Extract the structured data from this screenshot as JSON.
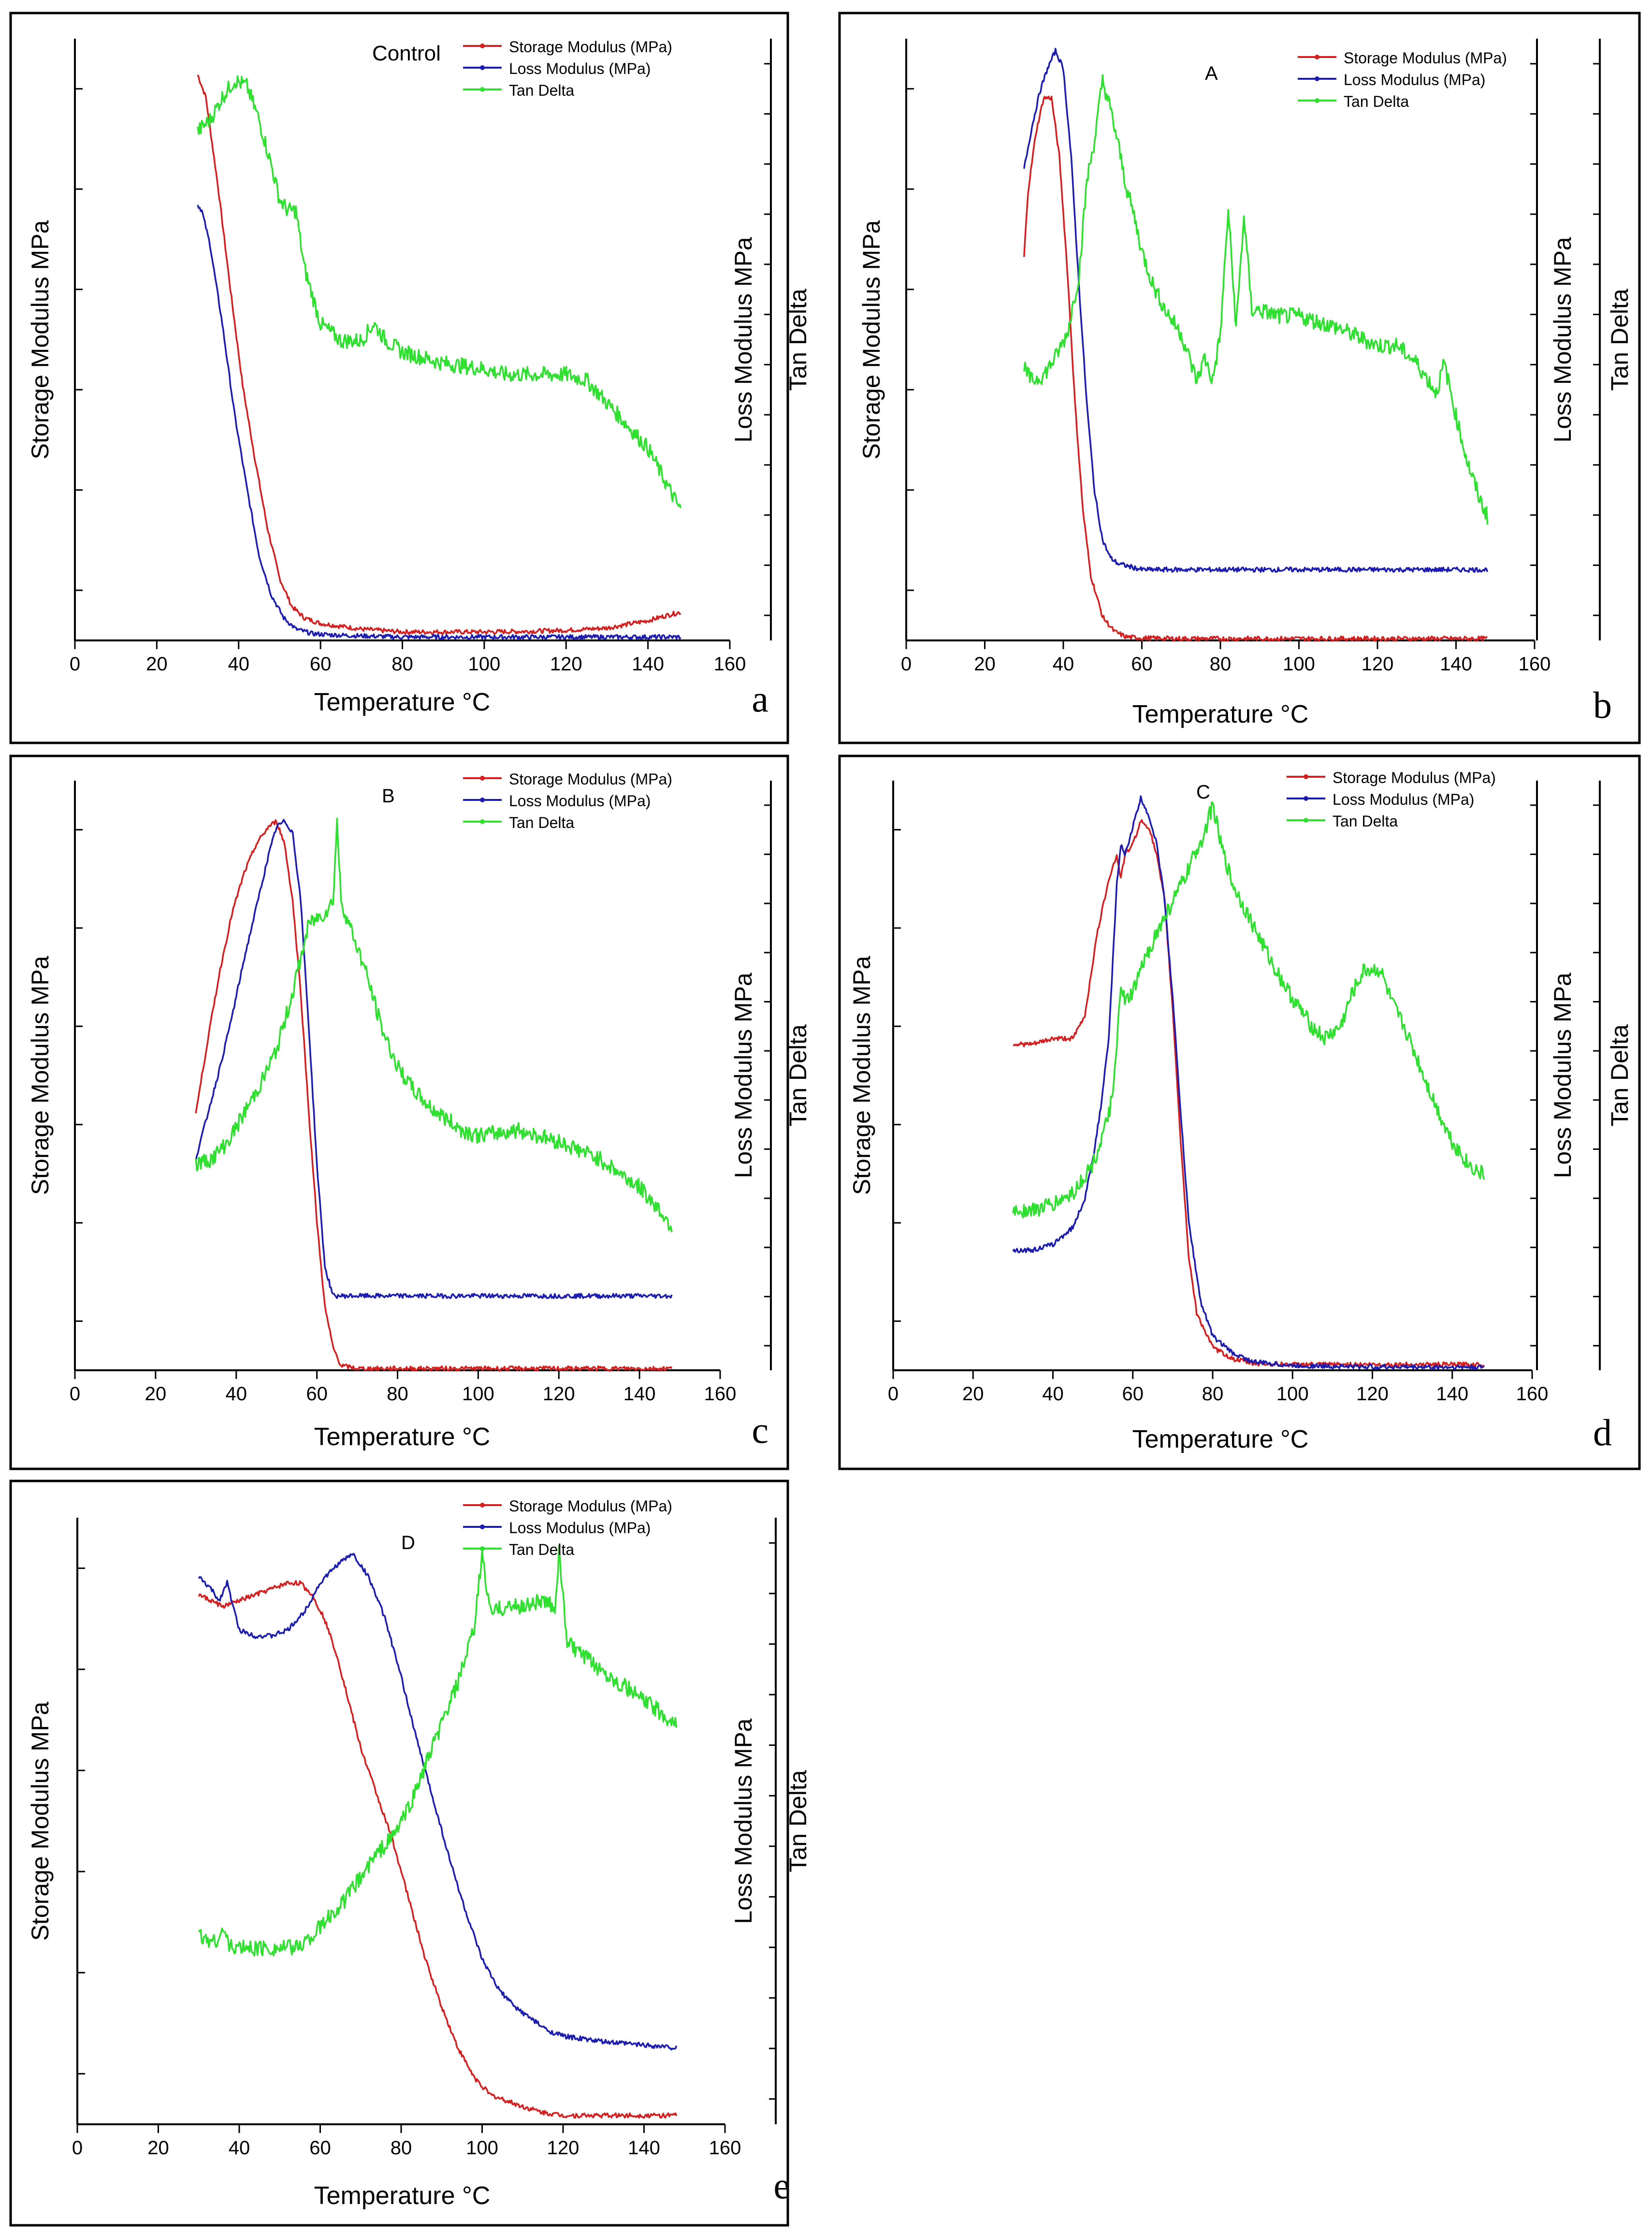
{
  "figure": {
    "x_axis_label": "Temperature",
    "x_axis_unit": "°C",
    "y_left_label": "Storage Modulus MPa",
    "y_right_label": "Loss Modulus MPa",
    "y_right2_label": "Tan Delta",
    "legend_labels": [
      "Storage Modulus (MPa)",
      "Loss Modulus (MPa)",
      "Tan Delta"
    ],
    "series_colors": {
      "storage": "#d42020",
      "loss": "#1c1cb0",
      "tan": "#30e030"
    },
    "x_ticks": [
      "0",
      "20",
      "40",
      "60",
      "80",
      "100",
      "120",
      "140",
      "160"
    ]
  },
  "chart_data": [
    {
      "panel": "a",
      "type": "line",
      "title": "Control",
      "xlim": [
        0,
        160
      ],
      "ylim": [
        0,
        1
      ],
      "series": [
        {
          "name": "Storage Modulus (MPa)",
          "x": [
            30,
            32,
            35,
            38,
            41,
            44,
            47,
            50,
            53,
            56,
            60,
            65,
            70,
            80,
            90,
            100,
            110,
            120,
            130,
            140,
            145,
            148
          ],
          "y": [
            1.0,
            0.96,
            0.8,
            0.62,
            0.45,
            0.32,
            0.2,
            0.11,
            0.06,
            0.04,
            0.03,
            0.025,
            0.02,
            0.015,
            0.015,
            0.015,
            0.016,
            0.018,
            0.022,
            0.035,
            0.045,
            0.05
          ]
        },
        {
          "name": "Loss Modulus (MPa)",
          "x": [
            30,
            31,
            33,
            36,
            39,
            42,
            45,
            48,
            51,
            54,
            58,
            62,
            70,
            80,
            100,
            120,
            140,
            148
          ],
          "y": [
            0.77,
            0.76,
            0.7,
            0.56,
            0.4,
            0.27,
            0.15,
            0.08,
            0.04,
            0.02,
            0.012,
            0.01,
            0.008,
            0.006,
            0.006,
            0.006,
            0.006,
            0.006
          ]
        },
        {
          "name": "Tan Delta",
          "x": [
            30,
            33,
            36,
            39,
            42,
            45,
            48,
            50,
            52,
            54,
            56,
            60,
            65,
            70,
            73,
            76,
            80,
            85,
            90,
            100,
            105,
            110,
            120,
            125,
            130,
            135,
            140,
            145,
            148
          ],
          "y": [
            0.9,
            0.92,
            0.96,
            0.99,
            0.98,
            0.92,
            0.84,
            0.78,
            0.76,
            0.76,
            0.66,
            0.56,
            0.53,
            0.53,
            0.56,
            0.53,
            0.51,
            0.5,
            0.49,
            0.48,
            0.47,
            0.47,
            0.47,
            0.46,
            0.42,
            0.38,
            0.34,
            0.27,
            0.23
          ]
        }
      ]
    },
    {
      "panel": "b",
      "type": "line",
      "title": "A",
      "xlim": [
        0,
        160
      ],
      "ylim": [
        0,
        1
      ],
      "series": [
        {
          "name": "Storage Modulus (MPa)",
          "x": [
            30,
            31,
            33,
            35,
            37,
            39,
            41,
            43,
            45,
            47,
            50,
            53,
            56,
            60,
            70,
            80,
            100,
            120,
            148
          ],
          "y": [
            0.65,
            0.76,
            0.86,
            0.92,
            0.92,
            0.82,
            0.63,
            0.4,
            0.22,
            0.11,
            0.04,
            0.015,
            0.006,
            0.004,
            0.003,
            0.003,
            0.003,
            0.003,
            0.003
          ]
        },
        {
          "name": "Loss Modulus (MPa)",
          "x": [
            30,
            32,
            34,
            36,
            38,
            40,
            42,
            44,
            46,
            48,
            50,
            52,
            54,
            57,
            60,
            65,
            70,
            80,
            100,
            120,
            148
          ],
          "y": [
            0.8,
            0.87,
            0.93,
            0.97,
            1.0,
            0.97,
            0.82,
            0.6,
            0.4,
            0.25,
            0.17,
            0.14,
            0.13,
            0.125,
            0.12,
            0.12,
            0.12,
            0.12,
            0.12,
            0.12,
            0.12
          ]
        },
        {
          "name": "Tan Delta",
          "x": [
            30,
            32,
            35,
            38,
            41,
            44,
            46,
            48,
            50,
            52,
            54,
            56,
            58,
            60,
            63,
            66,
            70,
            74,
            76,
            78,
            80,
            82,
            84,
            86,
            88,
            90,
            95,
            100,
            110,
            120,
            125,
            130,
            135,
            137,
            140,
            143,
            146,
            148
          ],
          "y": [
            0.46,
            0.44,
            0.45,
            0.48,
            0.52,
            0.62,
            0.78,
            0.85,
            0.95,
            0.9,
            0.84,
            0.77,
            0.72,
            0.66,
            0.6,
            0.56,
            0.52,
            0.44,
            0.48,
            0.44,
            0.52,
            0.73,
            0.53,
            0.72,
            0.56,
            0.56,
            0.55,
            0.55,
            0.53,
            0.5,
            0.5,
            0.47,
            0.42,
            0.47,
            0.38,
            0.3,
            0.24,
            0.21
          ]
        }
      ]
    },
    {
      "panel": "c",
      "type": "line",
      "title": "B",
      "xlim": [
        0,
        160
      ],
      "ylim": [
        0,
        1
      ],
      "series": [
        {
          "name": "Storage Modulus (MPa)",
          "x": [
            30,
            33,
            36,
            39,
            42,
            45,
            48,
            50,
            52,
            54,
            56,
            58,
            60,
            62,
            64,
            66,
            70,
            80,
            100,
            120,
            148
          ],
          "y": [
            0.45,
            0.58,
            0.7,
            0.8,
            0.87,
            0.92,
            0.95,
            0.96,
            0.92,
            0.82,
            0.66,
            0.45,
            0.26,
            0.11,
            0.04,
            0.008,
            0.003,
            0.003,
            0.003,
            0.003,
            0.003
          ]
        },
        {
          "name": "Loss Modulus (MPa)",
          "x": [
            30,
            33,
            36,
            39,
            42,
            45,
            48,
            50,
            52,
            54,
            56,
            58,
            60,
            62,
            64,
            66,
            70,
            80,
            100,
            120,
            148
          ],
          "y": [
            0.37,
            0.45,
            0.53,
            0.62,
            0.72,
            0.81,
            0.9,
            0.95,
            0.96,
            0.94,
            0.82,
            0.6,
            0.36,
            0.18,
            0.13,
            0.13,
            0.13,
            0.13,
            0.13,
            0.13,
            0.13
          ]
        },
        {
          "name": "Tan Delta",
          "x": [
            30,
            34,
            38,
            42,
            46,
            50,
            54,
            58,
            62,
            64,
            65,
            66,
            68,
            72,
            76,
            80,
            84,
            88,
            92,
            96,
            100,
            110,
            120,
            130,
            140,
            145,
            148
          ],
          "y": [
            0.36,
            0.37,
            0.4,
            0.45,
            0.5,
            0.56,
            0.66,
            0.78,
            0.8,
            0.82,
            0.96,
            0.82,
            0.78,
            0.7,
            0.6,
            0.53,
            0.49,
            0.46,
            0.44,
            0.42,
            0.41,
            0.42,
            0.4,
            0.37,
            0.32,
            0.28,
            0.25
          ]
        }
      ]
    },
    {
      "panel": "d",
      "type": "line",
      "title": "C",
      "xlim": [
        0,
        160
      ],
      "ylim": [
        0,
        1
      ],
      "series": [
        {
          "name": "Storage Modulus (MPa)",
          "x": [
            30,
            35,
            40,
            45,
            48,
            51,
            54,
            56,
            57,
            58,
            60,
            62,
            64,
            66,
            68,
            70,
            72,
            74,
            76,
            80,
            85,
            90,
            100,
            120,
            148
          ],
          "y": [
            0.57,
            0.57,
            0.58,
            0.58,
            0.62,
            0.76,
            0.86,
            0.9,
            0.86,
            0.9,
            0.92,
            0.96,
            0.95,
            0.9,
            0.82,
            0.63,
            0.4,
            0.2,
            0.1,
            0.04,
            0.02,
            0.012,
            0.01,
            0.01,
            0.01
          ]
        },
        {
          "name": "Loss Modulus (MPa)",
          "x": [
            30,
            35,
            40,
            45,
            48,
            50,
            52,
            54,
            56,
            57,
            58,
            60,
            62,
            64,
            66,
            68,
            70,
            72,
            74,
            77,
            80,
            85,
            90,
            100,
            120,
            148
          ],
          "y": [
            0.21,
            0.21,
            0.22,
            0.25,
            0.3,
            0.37,
            0.46,
            0.58,
            0.85,
            0.92,
            0.9,
            0.95,
            1.0,
            0.97,
            0.92,
            0.82,
            0.65,
            0.45,
            0.26,
            0.12,
            0.06,
            0.03,
            0.015,
            0.008,
            0.006,
            0.005
          ]
        },
        {
          "name": "Tan Delta",
          "x": [
            30,
            35,
            40,
            45,
            50,
            53,
            55,
            56,
            57,
            58,
            60,
            62,
            65,
            70,
            73,
            76,
            78,
            80,
            82,
            85,
            90,
            95,
            100,
            105,
            108,
            112,
            115,
            118,
            122,
            125,
            128,
            132,
            136,
            140,
            144,
            148
          ],
          "y": [
            0.28,
            0.28,
            0.29,
            0.31,
            0.36,
            0.42,
            0.48,
            0.56,
            0.68,
            0.64,
            0.66,
            0.7,
            0.75,
            0.82,
            0.86,
            0.91,
            0.94,
            0.99,
            0.92,
            0.85,
            0.78,
            0.71,
            0.65,
            0.6,
            0.58,
            0.6,
            0.66,
            0.7,
            0.7,
            0.64,
            0.6,
            0.53,
            0.46,
            0.4,
            0.36,
            0.34
          ]
        }
      ]
    },
    {
      "panel": "e",
      "type": "line",
      "title": "D",
      "xlim": [
        0,
        160
      ],
      "ylim": [
        0,
        1
      ],
      "series": [
        {
          "name": "Storage Modulus (MPa)",
          "x": [
            30,
            33,
            36,
            40,
            44,
            48,
            52,
            55,
            58,
            61,
            64,
            67,
            70,
            74,
            78,
            82,
            86,
            90,
            94,
            98,
            102,
            106,
            110,
            115,
            120,
            130,
            140,
            148
          ],
          "y": [
            0.9,
            0.89,
            0.88,
            0.89,
            0.9,
            0.91,
            0.92,
            0.92,
            0.9,
            0.86,
            0.8,
            0.72,
            0.64,
            0.56,
            0.48,
            0.38,
            0.28,
            0.2,
            0.13,
            0.08,
            0.05,
            0.04,
            0.03,
            0.02,
            0.015,
            0.015,
            0.015,
            0.015
          ]
        },
        {
          "name": "Loss Modulus (MPa)",
          "x": [
            30,
            33,
            35,
            37,
            40,
            44,
            48,
            52,
            56,
            60,
            64,
            68,
            72,
            76,
            80,
            84,
            88,
            92,
            96,
            100,
            104,
            108,
            112,
            116,
            120,
            130,
            140,
            148
          ],
          "y": [
            0.93,
            0.91,
            0.89,
            0.92,
            0.84,
            0.83,
            0.83,
            0.84,
            0.87,
            0.92,
            0.95,
            0.97,
            0.93,
            0.86,
            0.76,
            0.65,
            0.55,
            0.45,
            0.36,
            0.28,
            0.23,
            0.2,
            0.18,
            0.16,
            0.15,
            0.14,
            0.135,
            0.13
          ]
        },
        {
          "name": "Tan Delta",
          "x": [
            30,
            34,
            36,
            38,
            42,
            48,
            54,
            58,
            62,
            66,
            70,
            74,
            78,
            82,
            86,
            90,
            94,
            98,
            100,
            102,
            106,
            110,
            114,
            118,
            119,
            121,
            124,
            128,
            132,
            136,
            140,
            144,
            148
          ],
          "y": [
            0.32,
            0.31,
            0.33,
            0.3,
            0.3,
            0.3,
            0.3,
            0.32,
            0.35,
            0.38,
            0.42,
            0.46,
            0.49,
            0.54,
            0.61,
            0.68,
            0.75,
            0.84,
            0.97,
            0.87,
            0.88,
            0.88,
            0.89,
            0.88,
            0.97,
            0.82,
            0.8,
            0.78,
            0.76,
            0.74,
            0.72,
            0.7,
            0.68
          ]
        }
      ]
    }
  ]
}
